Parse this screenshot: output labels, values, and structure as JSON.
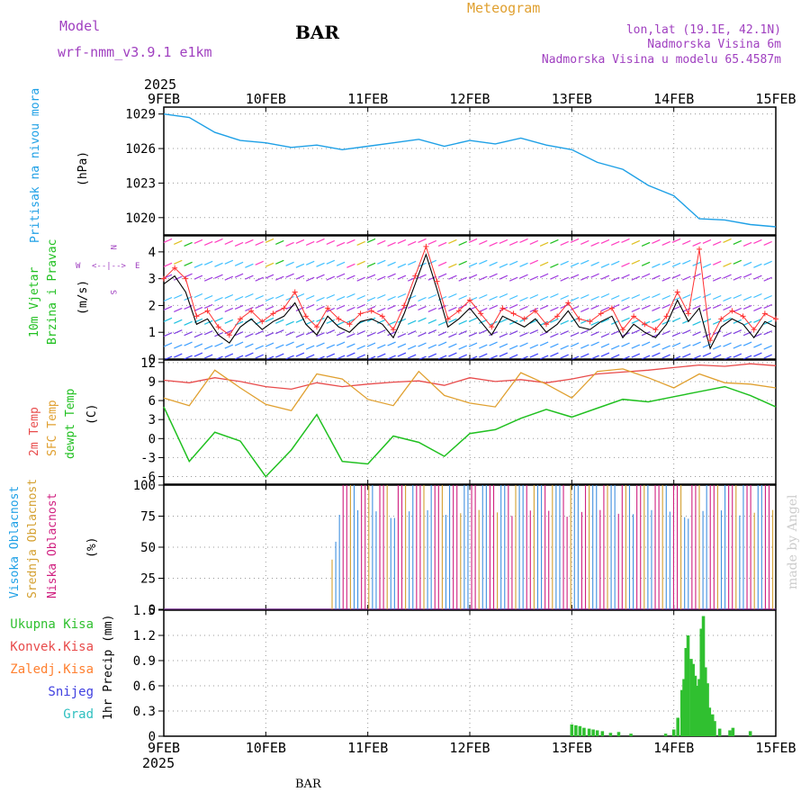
{
  "header": {
    "model_label": "Model",
    "model_name": "wrf-nmm_v3.9.1 e1km",
    "station": "BAR",
    "meteogram": "Meteogram",
    "lonlat": "lon,lat (19.1E, 42.1N)",
    "elev": "Nadmorska Visina 6m",
    "elev_model": "Nadmorska Visina u modelu 65.4587m",
    "footer_station": "BAR",
    "watermark": "made by Angel"
  },
  "colors": {
    "pressure": "#1ea0e6",
    "temp": "#e84b4b",
    "sfc": "#e0a030",
    "dew": "#20c020",
    "wind_speed": "#000000",
    "wind_gust": "#ff3030",
    "mid_cloud": "#d4a030",
    "high_cloud": "#4090e0",
    "low_cloud": "#d02080",
    "precip": "#30c030",
    "purple": "#a040c0"
  },
  "chart_data": [
    {
      "type": "line",
      "panel": "pressure",
      "ylabel": [
        "Pritisak na nivou mora",
        "(hPa)"
      ],
      "x": [
        "2025-02-09T00",
        "2025-02-09T06",
        "2025-02-09T12",
        "2025-02-09T18",
        "2025-02-10T00",
        "2025-02-10T06",
        "2025-02-10T12",
        "2025-02-10T18",
        "2025-02-11T00",
        "2025-02-11T06",
        "2025-02-11T12",
        "2025-02-11T18",
        "2025-02-12T00",
        "2025-02-12T06",
        "2025-02-12T12",
        "2025-02-12T18",
        "2025-02-13T00",
        "2025-02-13T06",
        "2025-02-13T12",
        "2025-02-13T18",
        "2025-02-14T00",
        "2025-02-14T06",
        "2025-02-14T12",
        "2025-02-14T18",
        "2025-02-15T00"
      ],
      "series": [
        {
          "values": [
            1029.0,
            1028.7,
            1027.4,
            1026.7,
            1026.5,
            1026.1,
            1026.3,
            1025.9,
            1026.2,
            1026.5,
            1026.8,
            1026.2,
            1026.7,
            1026.4,
            1026.9,
            1026.3,
            1025.9,
            1024.8,
            1024.2,
            1022.8,
            1021.9,
            1019.9,
            1019.8,
            1019.4,
            1019.2
          ]
        }
      ],
      "ylim": [
        1018.5,
        1029.6
      ],
      "yticks": [
        "1020",
        "1023",
        "1026",
        "1029"
      ]
    },
    {
      "type": "line",
      "panel": "wind",
      "ylabel": [
        "10m Vjetar",
        "Brzina i Pravac",
        "(m/s)"
      ],
      "compass": [
        "N",
        "S",
        "E",
        "W"
      ],
      "x_hours_step": 6,
      "series": [
        {
          "values": [
            2.8,
            3.1,
            2.5,
            1.3,
            1.5,
            0.9,
            0.6,
            1.2,
            1.5,
            1.1,
            1.4,
            1.6,
            2.1,
            1.3,
            0.9,
            1.6,
            1.2,
            1.0,
            1.4,
            1.5,
            1.3,
            0.8,
            1.7,
            2.8,
            3.9,
            2.6,
            1.2,
            1.5,
            1.9,
            1.4,
            0.9,
            1.6,
            1.4,
            1.2,
            1.5,
            1.0,
            1.3,
            1.8,
            1.2,
            1.1,
            1.4,
            1.6,
            0.8,
            1.3,
            1.0,
            0.8,
            1.3,
            2.2,
            1.4,
            1.9,
            0.4,
            1.2,
            1.5,
            1.3,
            0.8,
            1.4,
            1.2
          ]
        },
        {
          "values": [
            3.0,
            3.4,
            3.0,
            1.6,
            1.8,
            1.2,
            0.9,
            1.5,
            1.8,
            1.4,
            1.7,
            1.9,
            2.5,
            1.6,
            1.2,
            1.9,
            1.5,
            1.3,
            1.7,
            1.8,
            1.6,
            1.1,
            2.0,
            3.1,
            4.2,
            2.9,
            1.5,
            1.8,
            2.2,
            1.7,
            1.2,
            1.9,
            1.7,
            1.5,
            1.8,
            1.3,
            1.6,
            2.1,
            1.5,
            1.4,
            1.7,
            1.9,
            1.1,
            1.6,
            1.3,
            1.1,
            1.6,
            2.5,
            1.7,
            4.1,
            0.7,
            1.5,
            1.8,
            1.6,
            1.1,
            1.7,
            1.5
          ]
        }
      ],
      "ylim": [
        0,
        4.6
      ],
      "yticks": [
        "0",
        "1",
        "2",
        "3",
        "4"
      ]
    },
    {
      "type": "line",
      "panel": "temperature",
      "ylabel": [
        "2m Temp",
        "SFC Temp",
        "dewpt Temp",
        "(C)"
      ],
      "series": [
        {
          "values": [
            9.2,
            8.8,
            9.6,
            9.0,
            8.2,
            7.8,
            8.8,
            8.2,
            8.6,
            8.9,
            9.1,
            8.4,
            9.6,
            9.0,
            9.3,
            8.8,
            9.4,
            10.2,
            10.5,
            10.8,
            11.2,
            11.6,
            11.4,
            11.8,
            11.5
          ]
        },
        {
          "values": [
            6.4,
            5.2,
            10.8,
            8.0,
            5.4,
            4.4,
            10.2,
            9.4,
            6.2,
            5.2,
            10.6,
            6.8,
            5.6,
            5.0,
            10.4,
            8.6,
            6.4,
            10.6,
            11.0,
            9.6,
            8.0,
            10.2,
            8.8,
            8.6,
            8.0
          ]
        },
        {
          "values": [
            5.0,
            -3.6,
            1.0,
            -0.4,
            -6.0,
            -1.8,
            3.8,
            -3.6,
            -4.0,
            0.4,
            -0.6,
            -2.8,
            0.8,
            1.4,
            3.2,
            4.6,
            3.4,
            4.8,
            6.2,
            5.8,
            6.6,
            7.4,
            8.2,
            6.8,
            5.0
          ]
        }
      ],
      "ylim": [
        -7.2,
        12.4
      ],
      "yticks": [
        "-6",
        "-3",
        "0",
        "3",
        "6",
        "9",
        "12"
      ]
    },
    {
      "type": "bar",
      "panel": "cloud",
      "ylabel": [
        "Visoka Oblacnost",
        "Srednja Oblacnost",
        "Niska Oblacnost",
        "(%)"
      ],
      "ylim": [
        0,
        100
      ],
      "yticks": [
        "0",
        "25",
        "50",
        "75",
        "100"
      ]
    },
    {
      "type": "bar",
      "panel": "precip",
      "ylabel": [
        "1hr Precip (mm)"
      ],
      "legend": [
        "Ukupna Kisa",
        "Konvek.Kisa",
        "Zaledj.Kisa",
        "Snijeg",
        "Grad"
      ],
      "legend_colors": [
        "#30c030",
        "#e84b4b",
        "#ff8030",
        "#4040e0",
        "#30c0c0"
      ],
      "bars": [
        {
          "x": 4.0,
          "v": 0.14
        },
        {
          "x": 4.04,
          "v": 0.13
        },
        {
          "x": 4.08,
          "v": 0.12
        },
        {
          "x": 4.12,
          "v": 0.1
        },
        {
          "x": 4.17,
          "v": 0.09
        },
        {
          "x": 4.21,
          "v": 0.08
        },
        {
          "x": 4.25,
          "v": 0.07
        },
        {
          "x": 4.3,
          "v": 0.06
        },
        {
          "x": 4.38,
          "v": 0.04
        },
        {
          "x": 4.46,
          "v": 0.05
        },
        {
          "x": 4.58,
          "v": 0.03
        },
        {
          "x": 4.92,
          "v": 0.03
        },
        {
          "x": 5.0,
          "v": 0.08
        },
        {
          "x": 5.04,
          "v": 0.22
        },
        {
          "x": 5.08,
          "v": 0.55
        },
        {
          "x": 5.1,
          "v": 0.68
        },
        {
          "x": 5.12,
          "v": 1.05
        },
        {
          "x": 5.14,
          "v": 1.2
        },
        {
          "x": 5.17,
          "v": 0.92
        },
        {
          "x": 5.19,
          "v": 0.86
        },
        {
          "x": 5.21,
          "v": 0.72
        },
        {
          "x": 5.23,
          "v": 0.6
        },
        {
          "x": 5.25,
          "v": 0.68
        },
        {
          "x": 5.27,
          "v": 1.28
        },
        {
          "x": 5.29,
          "v": 1.43
        },
        {
          "x": 5.31,
          "v": 0.82
        },
        {
          "x": 5.33,
          "v": 0.63
        },
        {
          "x": 5.35,
          "v": 0.34
        },
        {
          "x": 5.38,
          "v": 0.26
        },
        {
          "x": 5.4,
          "v": 0.18
        },
        {
          "x": 5.45,
          "v": 0.09
        },
        {
          "x": 5.55,
          "v": 0.07
        },
        {
          "x": 5.58,
          "v": 0.1
        },
        {
          "x": 5.75,
          "v": 0.06
        }
      ],
      "ylim": [
        0,
        1.5
      ],
      "yticks": [
        "0",
        "0.3",
        "0.6",
        "0.9",
        "1.2",
        "1.5"
      ]
    }
  ],
  "xaxis": {
    "year": "2025",
    "labels": [
      "9FEB",
      "10FEB",
      "11FEB",
      "12FEB",
      "13FEB",
      "14FEB",
      "15FEB"
    ]
  }
}
